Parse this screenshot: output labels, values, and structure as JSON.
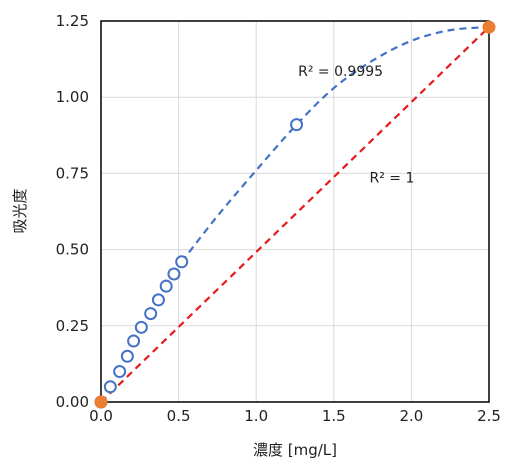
{
  "chart_data": {
    "type": "scatter",
    "title": "",
    "xlabel": "濃度 [mg/L]",
    "ylabel": "吸光度",
    "xlim": [
      0,
      2.5
    ],
    "ylim": [
      0,
      1.25
    ],
    "x_ticks": [
      "0.0",
      "0.5",
      "1.0",
      "1.5",
      "2.0",
      "2.5"
    ],
    "y_ticks": [
      "0.00",
      "0.25",
      "0.50",
      "0.75",
      "1.00",
      "1.25"
    ],
    "grid": true,
    "legend": "none",
    "series": [
      {
        "marker": "open-circle",
        "color": "#4472C4",
        "points": [
          {
            "x": 0.0,
            "y": 0.0
          },
          {
            "x": 0.06,
            "y": 0.05
          },
          {
            "x": 0.12,
            "y": 0.1
          },
          {
            "x": 0.17,
            "y": 0.15
          },
          {
            "x": 0.21,
            "y": 0.2
          },
          {
            "x": 0.26,
            "y": 0.245
          },
          {
            "x": 0.32,
            "y": 0.29
          },
          {
            "x": 0.37,
            "y": 0.335
          },
          {
            "x": 0.42,
            "y": 0.38
          },
          {
            "x": 0.47,
            "y": 0.42
          },
          {
            "x": 0.52,
            "y": 0.46
          },
          {
            "x": 1.26,
            "y": 0.91
          }
        ],
        "trendline": {
          "color": "#4472C4",
          "style": "dashed",
          "x": [
            0.52,
            0.75,
            1.0,
            1.26,
            1.5,
            1.75,
            2.0,
            2.25,
            2.5
          ],
          "y": [
            0.46,
            0.61,
            0.76,
            0.91,
            1.03,
            1.12,
            1.185,
            1.22,
            1.23
          ],
          "r2_label": "R² = 0.9995"
        }
      },
      {
        "marker": "filled-circle",
        "color": "#ED7D31",
        "points": [
          {
            "x": 0.0,
            "y": 0.0
          },
          {
            "x": 2.5,
            "y": 1.23
          }
        ],
        "trendline": {
          "color": "#E8191A",
          "style": "dashed",
          "x": [
            0.0,
            2.5
          ],
          "y": [
            0.0,
            1.23
          ],
          "r2_label": "R² = 1"
        }
      }
    ],
    "annotations": [
      {
        "text": "R² = 0.9995",
        "x": 1.27,
        "y": 1.07
      },
      {
        "text": "R² = 1",
        "x": 1.73,
        "y": 0.72
      }
    ]
  }
}
